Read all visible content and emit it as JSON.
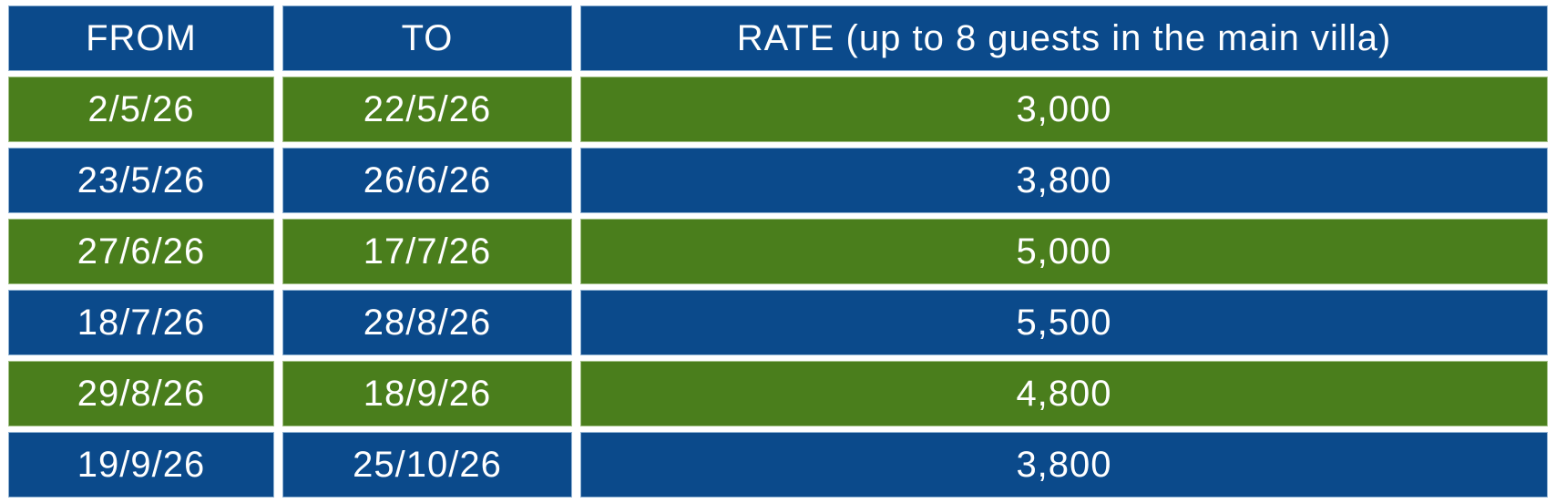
{
  "table": {
    "columns": {
      "from_label": "FROM",
      "to_label": "TO",
      "rate_label": "RATE (up to 8 guests in the main villa)"
    },
    "rows": [
      {
        "from": "2/5/26",
        "to": "22/5/26",
        "rate": "3,000"
      },
      {
        "from": "23/5/26",
        "to": "26/6/26",
        "rate": "3,800"
      },
      {
        "from": "27/6/26",
        "to": "17/7/26",
        "rate": "5,000"
      },
      {
        "from": "18/7/26",
        "to": "28/8/26",
        "rate": "5,500"
      },
      {
        "from": "29/8/26",
        "to": "18/9/26",
        "rate": "4,800"
      },
      {
        "from": "19/9/26",
        "to": "25/10/26",
        "rate": "3,800"
      }
    ],
    "colors": {
      "header_bg": "#0b4a8b",
      "row_blue_bg": "#0b4a8b",
      "row_green_bg": "#4a7e1c",
      "text": "#ffffff",
      "page_background": "#ffffff"
    }
  }
}
